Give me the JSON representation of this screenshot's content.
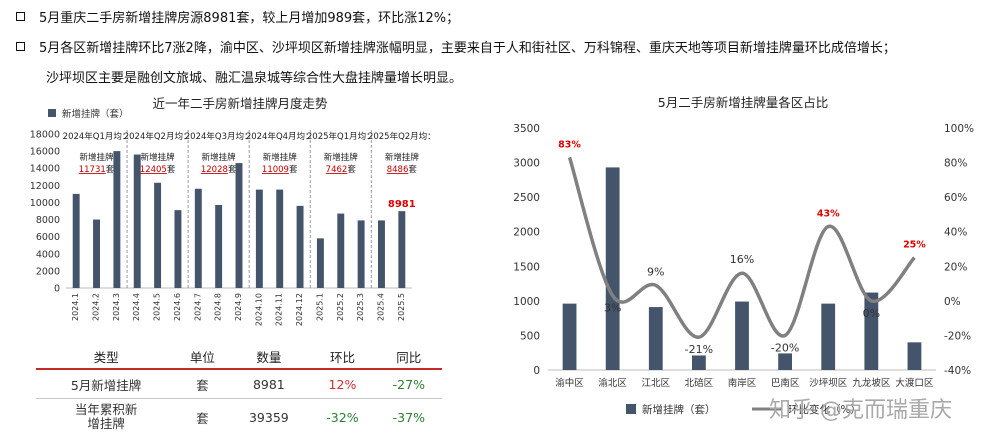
{
  "summary": {
    "line1": "5月重庆二手房新增挂牌房源8981套，较上月增加989套，环比涨12%；",
    "line2": "5月各区新增挂牌环比7涨2降，渝中区、沙坪坝区新增挂牌涨幅明显，主要来自于人和街社区、万科锦程、重庆天地等项目新增挂牌量环比成倍增长；",
    "line3": "沙坪坝区主要是融创文旅城、融汇温泉城等综合性大盘挂牌量增长明显。"
  },
  "chart_data": [
    {
      "type": "bar",
      "title": "近一年二手房新增挂牌月度走势",
      "legend": "新增挂牌（套）",
      "categories": [
        "2024.1",
        "2024.2",
        "2024.3",
        "2024.4",
        "2024.5",
        "2024.6",
        "2024.7",
        "2024.8",
        "2024.9",
        "2024.10",
        "2024.11",
        "2024.12",
        "2025.1",
        "2025.2",
        "2025.3",
        "2025.4",
        "2025.5"
      ],
      "values": [
        11000,
        8000,
        16000,
        15600,
        12300,
        9100,
        11600,
        9700,
        14600,
        11500,
        11500,
        9600,
        5800,
        8700,
        7900,
        7900,
        8981
      ],
      "highlight_label": "8981",
      "ylim": [
        0,
        18000
      ],
      "yticks": [
        "0",
        "2000",
        "4000",
        "6000",
        "8000",
        "10000",
        "12000",
        "14000",
        "16000",
        "18000"
      ],
      "quarter_notes": [
        {
          "head": "2024年Q1月均：",
          "mid": "新增挂牌",
          "num": "11731",
          "unit": "套"
        },
        {
          "head": "2024年Q2月均：",
          "mid": "新增挂牌",
          "num": "12405",
          "unit": "套"
        },
        {
          "head": "2024年Q3月均：",
          "mid": "新增挂牌",
          "num": "12028",
          "unit": "套"
        },
        {
          "head": "2024年Q4月均：",
          "mid": "新增挂牌",
          "num": "11009",
          "unit": "套"
        },
        {
          "head": "2025年Q1月均：",
          "mid": "新增挂牌",
          "num": "7462",
          "unit": "套"
        },
        {
          "head": "2025年Q2月均：",
          "mid": "新增挂牌",
          "num": "8486",
          "unit": "套"
        }
      ]
    },
    {
      "type": "bar",
      "title": "5月二手房新增挂牌量各区占比",
      "categories": [
        "渝中区",
        "渝北区",
        "江北区",
        "北碚区",
        "南岸区",
        "巴南区",
        "沙坪坝区",
        "九龙坡区",
        "大渡口区"
      ],
      "series": [
        {
          "name": "新增挂牌（套）",
          "values": [
            960,
            2930,
            910,
            210,
            990,
            240,
            960,
            1120,
            400
          ]
        },
        {
          "name": "环比变化（%）",
          "values": [
            83,
            3,
            9,
            -21,
            16,
            -20,
            43,
            0,
            25
          ]
        }
      ],
      "point_labels": [
        "83%",
        "3%",
        "9%",
        "-21%",
        "16%",
        "-20%",
        "43%",
        "0%",
        "25%"
      ],
      "ylim_left": [
        0,
        3500
      ],
      "ylim_right": [
        -40,
        100
      ],
      "yticks_left": [
        "0",
        "500",
        "1000",
        "1500",
        "2000",
        "2500",
        "3000",
        "3500"
      ],
      "yticks_right": [
        "-40%",
        "-20%",
        "0%",
        "20%",
        "40%",
        "60%",
        "80%",
        "100%"
      ]
    }
  ],
  "table": {
    "headers": [
      "类型",
      "单位",
      "数量",
      "环比",
      "同比"
    ],
    "rows": [
      {
        "type": "5月新增挂牌",
        "unit": "套",
        "qty": "8981",
        "mom": "12%",
        "yoy": "-27%"
      },
      {
        "type1": "当年累积新",
        "type2": "增挂牌",
        "unit": "套",
        "qty": "39359",
        "mom": "-32%",
        "yoy": "-37%"
      }
    ]
  },
  "watermark": "知乎 @克而瑞重庆",
  "colors": {
    "bar": "#44546a",
    "line": "#808080",
    "highlight": "#e00000",
    "table_rule": "#c62828"
  }
}
